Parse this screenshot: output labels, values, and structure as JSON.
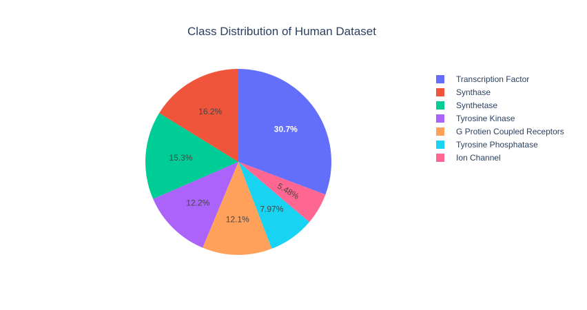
{
  "chart_data": {
    "type": "pie",
    "title": "Class Distribution of Human Dataset",
    "legend_position": "right",
    "start_angle_deg": 90,
    "direction": "clockwise",
    "slices": [
      {
        "label": "Transcription Factor",
        "value": 30.7,
        "text": "30.7%",
        "color": "#636efa",
        "text_color": "#ffffff"
      },
      {
        "label": "Ion Channel",
        "value": 5.48,
        "text": "5.48%",
        "color": "#ff6692",
        "text_color": "#444444"
      },
      {
        "label": "Tyrosine Phosphatase",
        "value": 7.97,
        "text": "7.97%",
        "color": "#19d3f3",
        "text_color": "#444444"
      },
      {
        "label": "G Protien Coupled Receptors",
        "value": 12.1,
        "text": "12.1%",
        "color": "#ffa15a",
        "text_color": "#444444"
      },
      {
        "label": "Tyrosine Kinase",
        "value": 12.2,
        "text": "12.2%",
        "color": "#ab63fa",
        "text_color": "#444444"
      },
      {
        "label": "Synthetase",
        "value": 15.3,
        "text": "15.3%",
        "color": "#00cc96",
        "text_color": "#444444"
      },
      {
        "label": "Synthase",
        "value": 16.2,
        "text": "16.2%",
        "color": "#ef553b",
        "text_color": "#444444"
      }
    ],
    "legend": [
      {
        "label": "Transcription Factor",
        "color": "#636efa"
      },
      {
        "label": "Synthase",
        "color": "#ef553b"
      },
      {
        "label": "Synthetase",
        "color": "#00cc96"
      },
      {
        "label": "Tyrosine Kinase",
        "color": "#ab63fa"
      },
      {
        "label": "G Protien Coupled Receptors",
        "color": "#ffa15a"
      },
      {
        "label": "Tyrosine Phosphatase",
        "color": "#19d3f3"
      },
      {
        "label": "Ion Channel",
        "color": "#ff6692"
      }
    ]
  }
}
